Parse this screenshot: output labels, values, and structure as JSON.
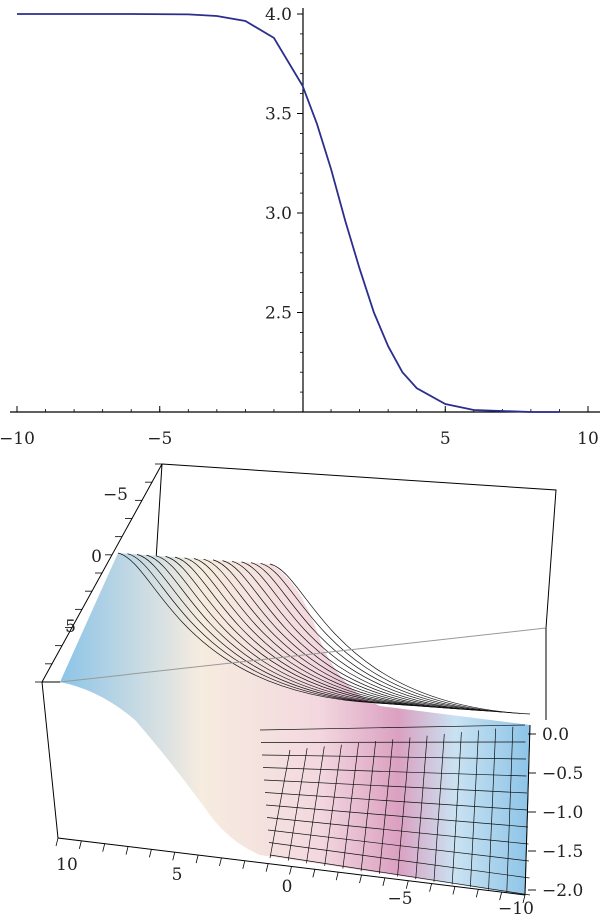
{
  "chart_data": [
    {
      "type": "line",
      "title": "",
      "xlabel": "",
      "ylabel": "",
      "xlim": [
        -10,
        10
      ],
      "ylim": [
        2.0,
        4.0
      ],
      "grid": false,
      "x_ticks": [
        "−10",
        "−5",
        "5",
        "10"
      ],
      "y_ticks": [
        "2.5",
        "3.0",
        "3.5",
        "4.0"
      ],
      "line_color": "#2b2e8c",
      "series": [
        {
          "x": [
            -10,
            -8,
            -6,
            -4,
            -3,
            -2,
            -1,
            0,
            0.5,
            1,
            1.5,
            2,
            2.5,
            3,
            3.5,
            4,
            5,
            6,
            7,
            8,
            9
          ],
          "values": [
            4.0,
            4.0,
            4.0,
            3.998,
            3.99,
            3.965,
            3.88,
            3.64,
            3.45,
            3.22,
            2.96,
            2.72,
            2.5,
            2.33,
            2.2,
            2.12,
            2.04,
            2.01,
            2.005,
            2.0,
            2.0
          ]
        }
      ]
    },
    {
      "type": "surface",
      "title": "",
      "xlabel": "",
      "ylabel": "",
      "zlabel": "",
      "grid": false,
      "x_ticks": [
        "10",
        "5",
        "0",
        "−5",
        "−10"
      ],
      "y_ticks": [
        "−5",
        "0",
        "5"
      ],
      "z_ticks": [
        "0.0",
        "−0.5",
        "−1.0",
        "−1.5",
        "−2.0"
      ],
      "colors": {
        "low": "#8cc4e8",
        "mid": "#f6ecdf",
        "high": "#c86a9e"
      }
    }
  ]
}
